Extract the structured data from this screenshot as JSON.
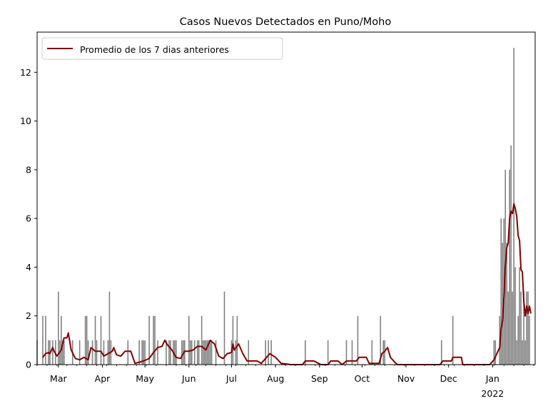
{
  "chart_data": {
    "type": "bar",
    "title": "Casos Nuevos Detectados en Puno/Moho",
    "xlabel": "",
    "ylabel": "",
    "x_range": [
      "2021-02-14",
      "2022-01-31"
    ],
    "ylim": [
      0,
      13.65
    ],
    "y_ticks": [
      0,
      2,
      4,
      6,
      8,
      10,
      12
    ],
    "x_ticks": [
      {
        "date": "2021-03-01",
        "label": "Mar",
        "sub": ""
      },
      {
        "date": "2021-04-01",
        "label": "Apr",
        "sub": ""
      },
      {
        "date": "2021-05-01",
        "label": "May",
        "sub": ""
      },
      {
        "date": "2021-06-01",
        "label": "Jun",
        "sub": ""
      },
      {
        "date": "2021-07-01",
        "label": "Jul",
        "sub": ""
      },
      {
        "date": "2021-08-01",
        "label": "Aug",
        "sub": ""
      },
      {
        "date": "2021-09-01",
        "label": "Sep",
        "sub": ""
      },
      {
        "date": "2021-10-01",
        "label": "Oct",
        "sub": ""
      },
      {
        "date": "2021-11-01",
        "label": "Nov",
        "sub": ""
      },
      {
        "date": "2021-12-01",
        "label": "Dec",
        "sub": ""
      },
      {
        "date": "2022-01-01",
        "label": "Jan",
        "sub": "2022"
      }
    ],
    "grid": false,
    "legend": {
      "placement": "top-left",
      "entries": [
        {
          "name": "Promedio de los 7 dias anteriores",
          "color": "#800000"
        }
      ]
    },
    "series": [
      {
        "kind": "bar",
        "color": "#808080",
        "points": [
          [
            "2021-02-14",
            1
          ],
          [
            "2021-02-18",
            2
          ],
          [
            "2021-02-20",
            2
          ],
          [
            "2021-02-22",
            1
          ],
          [
            "2021-02-23",
            1
          ],
          [
            "2021-02-25",
            1
          ],
          [
            "2021-02-27",
            1
          ],
          [
            "2021-03-01",
            3
          ],
          [
            "2021-03-02",
            1
          ],
          [
            "2021-03-03",
            2
          ],
          [
            "2021-03-04",
            1
          ],
          [
            "2021-03-05",
            1
          ],
          [
            "2021-03-11",
            1
          ],
          [
            "2021-03-16",
            1
          ],
          [
            "2021-03-20",
            2
          ],
          [
            "2021-03-21",
            2
          ],
          [
            "2021-03-22",
            1
          ],
          [
            "2021-03-25",
            1
          ],
          [
            "2021-03-27",
            2
          ],
          [
            "2021-03-28",
            1
          ],
          [
            "2021-03-31",
            2
          ],
          [
            "2021-04-02",
            1
          ],
          [
            "2021-04-05",
            1
          ],
          [
            "2021-04-06",
            3
          ],
          [
            "2021-04-07",
            1
          ],
          [
            "2021-04-19",
            1
          ],
          [
            "2021-04-27",
            1
          ],
          [
            "2021-04-29",
            1
          ],
          [
            "2021-04-30",
            1
          ],
          [
            "2021-05-01",
            1
          ],
          [
            "2021-05-04",
            2
          ],
          [
            "2021-05-07",
            2
          ],
          [
            "2021-05-08",
            2
          ],
          [
            "2021-05-10",
            1
          ],
          [
            "2021-05-16",
            1
          ],
          [
            "2021-05-18",
            1
          ],
          [
            "2021-05-19",
            1
          ],
          [
            "2021-05-21",
            1
          ],
          [
            "2021-05-22",
            1
          ],
          [
            "2021-05-23",
            1
          ],
          [
            "2021-05-27",
            1
          ],
          [
            "2021-05-28",
            1
          ],
          [
            "2021-05-29",
            1
          ],
          [
            "2021-06-01",
            2
          ],
          [
            "2021-06-02",
            1
          ],
          [
            "2021-06-03",
            1
          ],
          [
            "2021-06-05",
            1
          ],
          [
            "2021-06-07",
            1
          ],
          [
            "2021-06-08",
            1
          ],
          [
            "2021-06-10",
            2
          ],
          [
            "2021-06-11",
            1
          ],
          [
            "2021-06-12",
            1
          ],
          [
            "2021-06-13",
            1
          ],
          [
            "2021-06-14",
            1
          ],
          [
            "2021-06-15",
            1
          ],
          [
            "2021-06-16",
            1
          ],
          [
            "2021-06-17",
            1
          ],
          [
            "2021-06-20",
            1
          ],
          [
            "2021-06-26",
            3
          ],
          [
            "2021-07-01",
            1
          ],
          [
            "2021-07-02",
            2
          ],
          [
            "2021-07-04",
            1
          ],
          [
            "2021-07-05",
            2
          ],
          [
            "2021-07-13",
            1
          ],
          [
            "2021-07-25",
            1
          ],
          [
            "2021-07-27",
            1
          ],
          [
            "2021-07-29",
            1
          ],
          [
            "2021-08-22",
            1
          ],
          [
            "2021-09-07",
            1
          ],
          [
            "2021-09-20",
            1
          ],
          [
            "2021-09-24",
            1
          ],
          [
            "2021-09-28",
            2
          ],
          [
            "2021-10-08",
            1
          ],
          [
            "2021-10-14",
            2
          ],
          [
            "2021-10-16",
            1
          ],
          [
            "2021-10-17",
            1
          ],
          [
            "2021-11-26",
            1
          ],
          [
            "2021-12-04",
            2
          ],
          [
            "2022-01-02",
            1
          ],
          [
            "2022-01-03",
            1
          ],
          [
            "2022-01-06",
            2
          ],
          [
            "2022-01-07",
            6
          ],
          [
            "2022-01-08",
            5
          ],
          [
            "2022-01-09",
            6
          ],
          [
            "2022-01-10",
            8
          ],
          [
            "2022-01-11",
            5
          ],
          [
            "2022-01-12",
            3
          ],
          [
            "2022-01-13",
            8
          ],
          [
            "2022-01-14",
            9
          ],
          [
            "2022-01-15",
            3
          ],
          [
            "2022-01-16",
            13
          ],
          [
            "2022-01-17",
            4
          ],
          [
            "2022-01-18",
            1
          ],
          [
            "2022-01-19",
            2
          ],
          [
            "2022-01-20",
            4
          ],
          [
            "2022-01-21",
            3
          ],
          [
            "2022-01-22",
            1
          ],
          [
            "2022-01-23",
            3
          ],
          [
            "2022-01-24",
            1
          ],
          [
            "2022-01-25",
            3
          ],
          [
            "2022-01-26",
            3
          ],
          [
            "2022-01-27",
            2
          ]
        ]
      },
      {
        "kind": "line",
        "name": "Promedio de los 7 dias anteriores",
        "color": "#800000",
        "points": [
          [
            "2021-02-18",
            0.3
          ],
          [
            "2021-02-20",
            0.45
          ],
          [
            "2021-02-22",
            0.5
          ],
          [
            "2021-02-23",
            0.45
          ],
          [
            "2021-02-25",
            0.7
          ],
          [
            "2021-02-26",
            0.55
          ],
          [
            "2021-02-28",
            0.35
          ],
          [
            "2021-03-03",
            0.6
          ],
          [
            "2021-03-05",
            1.1
          ],
          [
            "2021-03-07",
            1.1
          ],
          [
            "2021-03-08",
            1.3
          ],
          [
            "2021-03-10",
            0.6
          ],
          [
            "2021-03-13",
            0.25
          ],
          [
            "2021-03-16",
            0.2
          ],
          [
            "2021-03-19",
            0.3
          ],
          [
            "2021-03-22",
            0.2
          ],
          [
            "2021-03-24",
            0.7
          ],
          [
            "2021-03-27",
            0.55
          ],
          [
            "2021-03-31",
            0.55
          ],
          [
            "2021-04-02",
            0.35
          ],
          [
            "2021-04-05",
            0.45
          ],
          [
            "2021-04-08",
            0.55
          ],
          [
            "2021-04-09",
            0.7
          ],
          [
            "2021-04-11",
            0.4
          ],
          [
            "2021-04-14",
            0.35
          ],
          [
            "2021-04-17",
            0.55
          ],
          [
            "2021-04-21",
            0.55
          ],
          [
            "2021-04-24",
            0.05
          ],
          [
            "2021-04-30",
            0.15
          ],
          [
            "2021-05-04",
            0.25
          ],
          [
            "2021-05-07",
            0.5
          ],
          [
            "2021-05-10",
            0.7
          ],
          [
            "2021-05-13",
            0.75
          ],
          [
            "2021-05-15",
            1.0
          ],
          [
            "2021-05-17",
            0.8
          ],
          [
            "2021-05-20",
            0.6
          ],
          [
            "2021-05-23",
            0.3
          ],
          [
            "2021-05-26",
            0.25
          ],
          [
            "2021-05-29",
            0.55
          ],
          [
            "2021-06-01",
            0.55
          ],
          [
            "2021-06-04",
            0.6
          ],
          [
            "2021-06-07",
            0.75
          ],
          [
            "2021-06-10",
            0.75
          ],
          [
            "2021-06-13",
            0.6
          ],
          [
            "2021-06-16",
            1.0
          ],
          [
            "2021-06-19",
            0.85
          ],
          [
            "2021-06-22",
            0.35
          ],
          [
            "2021-06-25",
            0.25
          ],
          [
            "2021-06-28",
            0.45
          ],
          [
            "2021-07-01",
            0.5
          ],
          [
            "2021-07-02",
            0.85
          ],
          [
            "2021-07-03",
            0.6
          ],
          [
            "2021-07-06",
            0.85
          ],
          [
            "2021-07-09",
            0.45
          ],
          [
            "2021-07-12",
            0.15
          ],
          [
            "2021-07-15",
            0.15
          ],
          [
            "2021-07-19",
            0.15
          ],
          [
            "2021-07-22",
            0.05
          ],
          [
            "2021-07-25",
            0.25
          ],
          [
            "2021-07-28",
            0.45
          ],
          [
            "2021-08-01",
            0.3
          ],
          [
            "2021-08-05",
            0.05
          ],
          [
            "2021-08-12",
            0.0
          ],
          [
            "2021-08-20",
            0.0
          ],
          [
            "2021-08-22",
            0.15
          ],
          [
            "2021-08-28",
            0.15
          ],
          [
            "2021-09-02",
            0.0
          ],
          [
            "2021-09-07",
            0.0
          ],
          [
            "2021-09-09",
            0.15
          ],
          [
            "2021-09-14",
            0.15
          ],
          [
            "2021-09-17",
            0.0
          ],
          [
            "2021-09-20",
            0.15
          ],
          [
            "2021-09-27",
            0.15
          ],
          [
            "2021-09-29",
            0.3
          ],
          [
            "2021-10-04",
            0.3
          ],
          [
            "2021-10-06",
            0.05
          ],
          [
            "2021-10-13",
            0.05
          ],
          [
            "2021-10-15",
            0.45
          ],
          [
            "2021-10-17",
            0.55
          ],
          [
            "2021-10-19",
            0.7
          ],
          [
            "2021-10-21",
            0.3
          ],
          [
            "2021-10-24",
            0.1
          ],
          [
            "2021-10-26",
            0.0
          ],
          [
            "2021-11-25",
            0.0
          ],
          [
            "2021-11-27",
            0.15
          ],
          [
            "2021-12-03",
            0.15
          ],
          [
            "2021-12-04",
            0.3
          ],
          [
            "2021-12-10",
            0.3
          ],
          [
            "2021-12-11",
            0.0
          ],
          [
            "2021-12-30",
            0.0
          ],
          [
            "2022-01-02",
            0.2
          ],
          [
            "2022-01-04",
            0.45
          ],
          [
            "2022-01-06",
            0.7
          ],
          [
            "2022-01-07",
            1.5
          ],
          [
            "2022-01-08",
            1.8
          ],
          [
            "2022-01-09",
            2.8
          ],
          [
            "2022-01-10",
            4.1
          ],
          [
            "2022-01-11",
            4.8
          ],
          [
            "2022-01-12",
            5.0
          ],
          [
            "2022-01-13",
            6.0
          ],
          [
            "2022-01-14",
            6.3
          ],
          [
            "2022-01-15",
            6.2
          ],
          [
            "2022-01-16",
            6.6
          ],
          [
            "2022-01-17",
            6.4
          ],
          [
            "2022-01-18",
            6.1
          ],
          [
            "2022-01-19",
            5.3
          ],
          [
            "2022-01-20",
            5.1
          ],
          [
            "2022-01-21",
            3.9
          ],
          [
            "2022-01-22",
            3.8
          ],
          [
            "2022-01-23",
            2.6
          ],
          [
            "2022-01-24",
            2.0
          ],
          [
            "2022-01-25",
            2.4
          ],
          [
            "2022-01-26",
            2.1
          ],
          [
            "2022-01-27",
            2.4
          ],
          [
            "2022-01-28",
            2.1
          ]
        ]
      }
    ]
  }
}
